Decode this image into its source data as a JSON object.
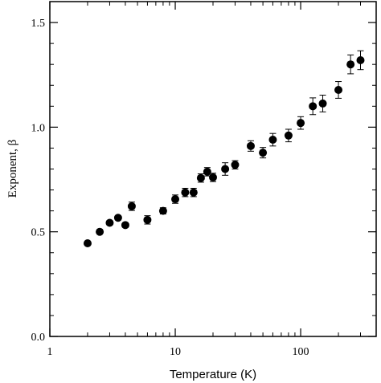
{
  "chart_data": {
    "type": "scatter",
    "xlabel": "Temperature (K)",
    "ylabel": "Exponent, β",
    "xscale": "log",
    "xlim": [
      1,
      400
    ],
    "ylim": [
      0.0,
      1.6
    ],
    "xticks": [
      {
        "value": 1,
        "label": "1"
      },
      {
        "value": 10,
        "label": "10"
      },
      {
        "value": 100,
        "label": "100"
      }
    ],
    "yticks": [
      {
        "value": 0.0,
        "label": "0.0"
      },
      {
        "value": 0.5,
        "label": "0.5"
      },
      {
        "value": 1.0,
        "label": "1.0"
      },
      {
        "value": 1.5,
        "label": "1.5"
      }
    ],
    "grid": false,
    "marker_color": "#000000",
    "series": [
      {
        "points": [
          {
            "x": 2.0,
            "y": 0.445,
            "err": 0.0
          },
          {
            "x": 2.5,
            "y": 0.5,
            "err": 0.0
          },
          {
            "x": 3.0,
            "y": 0.543,
            "err": 0.01
          },
          {
            "x": 3.5,
            "y": 0.567,
            "err": 0.01
          },
          {
            "x": 4.0,
            "y": 0.532,
            "err": 0.01
          },
          {
            "x": 4.5,
            "y": 0.622,
            "err": 0.02
          },
          {
            "x": 6.0,
            "y": 0.557,
            "err": 0.02
          },
          {
            "x": 8.0,
            "y": 0.6,
            "err": 0.015
          },
          {
            "x": 10.0,
            "y": 0.656,
            "err": 0.02
          },
          {
            "x": 12.0,
            "y": 0.688,
            "err": 0.02
          },
          {
            "x": 14.0,
            "y": 0.688,
            "err": 0.02
          },
          {
            "x": 16.0,
            "y": 0.757,
            "err": 0.02
          },
          {
            "x": 18.0,
            "y": 0.787,
            "err": 0.02
          },
          {
            "x": 20.0,
            "y": 0.76,
            "err": 0.02
          },
          {
            "x": 25.0,
            "y": 0.8,
            "err": 0.03
          },
          {
            "x": 30.0,
            "y": 0.82,
            "err": 0.02
          },
          {
            "x": 40.0,
            "y": 0.91,
            "err": 0.025
          },
          {
            "x": 50.0,
            "y": 0.878,
            "err": 0.025
          },
          {
            "x": 60.0,
            "y": 0.94,
            "err": 0.03
          },
          {
            "x": 80.0,
            "y": 0.96,
            "err": 0.03
          },
          {
            "x": 100.0,
            "y": 1.02,
            "err": 0.03
          },
          {
            "x": 125.0,
            "y": 1.1,
            "err": 0.04
          },
          {
            "x": 150.0,
            "y": 1.113,
            "err": 0.04
          },
          {
            "x": 200.0,
            "y": 1.178,
            "err": 0.04
          },
          {
            "x": 250.0,
            "y": 1.3,
            "err": 0.045
          },
          {
            "x": 300.0,
            "y": 1.32,
            "err": 0.045
          }
        ]
      }
    ]
  }
}
